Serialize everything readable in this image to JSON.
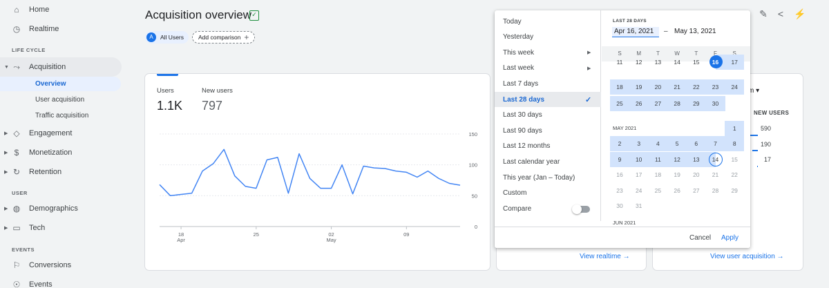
{
  "sidebar": {
    "items": [
      {
        "label": "Home",
        "icon": "home-icon"
      },
      {
        "label": "Realtime",
        "icon": "clock-icon"
      },
      {
        "label": "Acquisition",
        "icon": "acquisition-icon"
      },
      {
        "label": "Engagement",
        "icon": "tag-icon"
      },
      {
        "label": "Monetization",
        "icon": "dollar-icon"
      },
      {
        "label": "Retention",
        "icon": "retention-icon"
      },
      {
        "label": "Demographics",
        "icon": "globe-icon"
      },
      {
        "label": "Tech",
        "icon": "devices-icon"
      },
      {
        "label": "Conversions",
        "icon": "flag-icon"
      },
      {
        "label": "Events",
        "icon": "events-icon"
      }
    ],
    "sections": {
      "life_cycle": "LIFE CYCLE",
      "user": "USER",
      "events": "EVENTS"
    },
    "sub_items": [
      {
        "label": "Overview",
        "active": true
      },
      {
        "label": "User acquisition"
      },
      {
        "label": "Traffic acquisition"
      }
    ]
  },
  "header": {
    "title": "Acquisition overview",
    "chip_all_users": "All Users",
    "chip_badge": "A",
    "add_comparison": "Add comparison"
  },
  "card_main": {
    "metric1_label": "Users",
    "metric1_value": "1.1K",
    "metric2_label": "New users",
    "metric2_value": "797"
  },
  "chart_data": {
    "type": "line",
    "series": [
      {
        "values": [
          68,
          50,
          52,
          54,
          90,
          102,
          125,
          82,
          65,
          62,
          108,
          112,
          54,
          118,
          78,
          62,
          62,
          100,
          53,
          98,
          95,
          94,
          90,
          88,
          80,
          90,
          78,
          70,
          67
        ]
      }
    ],
    "x_tick_labels": [
      {
        "day": "18",
        "month": "Apr"
      },
      {
        "day": "25",
        "month": ""
      },
      {
        "day": "02",
        "month": "May"
      },
      {
        "day": "09",
        "month": ""
      }
    ],
    "y_ticks": [
      0,
      50,
      100,
      150
    ],
    "ylim": [
      0,
      150
    ]
  },
  "card_mid": {
    "view_link": "View realtime →"
  },
  "card_right": {
    "dropdown_partial": "m ▾",
    "column_header": "NEW USERS",
    "values": [
      "590",
      "190",
      "17"
    ],
    "bar_fractions": [
      1.0,
      0.3,
      0.03
    ],
    "view_link": "View user acquisition →"
  },
  "picker": {
    "presets": [
      {
        "label": "Today"
      },
      {
        "label": "Yesterday"
      },
      {
        "label": "This week",
        "has_submenu": true
      },
      {
        "label": "Last week",
        "has_submenu": true
      },
      {
        "label": "Last 7 days"
      },
      {
        "label": "Last 28 days",
        "selected": true
      },
      {
        "label": "Last 30 days"
      },
      {
        "label": "Last 90 days"
      },
      {
        "label": "Last 12 months"
      },
      {
        "label": "Last calendar year"
      },
      {
        "label": "This year (Jan – Today)"
      },
      {
        "label": "Custom"
      }
    ],
    "compare_label": "Compare",
    "range_title": "LAST 28 DAYS",
    "range_start": "Apr 16, 2021",
    "range_dash": "–",
    "range_end": "May 13, 2021",
    "weekdays": [
      "S",
      "M",
      "T",
      "W",
      "T",
      "F",
      "S"
    ],
    "april_rows": [
      [
        "11",
        "12",
        "13",
        "14",
        "15",
        "16",
        "17"
      ],
      [
        "18",
        "19",
        "20",
        "21",
        "22",
        "23",
        "24"
      ],
      [
        "25",
        "26",
        "27",
        "28",
        "29",
        "30",
        ""
      ]
    ],
    "may_label": "MAY 2021",
    "may_rows": [
      [
        "",
        "",
        "",
        "",
        "",
        "",
        "1"
      ],
      [
        "2",
        "3",
        "4",
        "5",
        "6",
        "7",
        "8"
      ],
      [
        "9",
        "10",
        "11",
        "12",
        "13",
        "14",
        "15"
      ],
      [
        "16",
        "17",
        "18",
        "19",
        "20",
        "21",
        "22"
      ],
      [
        "23",
        "24",
        "25",
        "26",
        "27",
        "28",
        "29"
      ],
      [
        "30",
        "31",
        "",
        "",
        "",
        "",
        ""
      ]
    ],
    "jun_label": "JUN 2021",
    "cancel": "Cancel",
    "apply": "Apply"
  },
  "colors": {
    "accent": "#1a73e8",
    "range_bg": "#d2e3fc",
    "selected_bg": "#e8eaed"
  }
}
